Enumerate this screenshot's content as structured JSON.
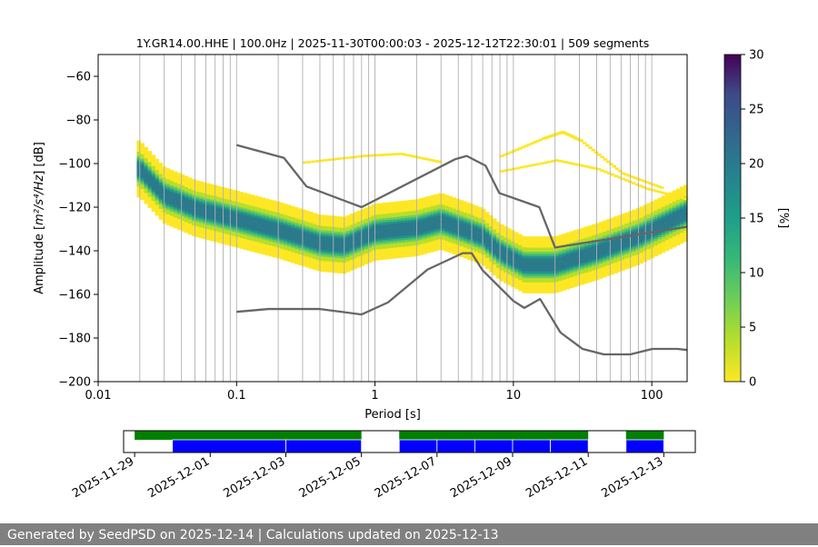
{
  "chart_data": {
    "type": "heatmap",
    "title": "1Y.GR14.00.HHE | 100.0Hz | 2025-11-30T00:00:03 - 2025-12-12T22:30:01 | 509 segments",
    "xlabel": "Period [s]",
    "ylabel_main": "Amplitude [",
    "ylabel_unit": "m²/s⁴/Hz",
    "ylabel_tail": "] [dB]",
    "x_scale": "log",
    "xlim": [
      0.01,
      180
    ],
    "x_ticks": [
      {
        "value": 0.01,
        "label": "0.01"
      },
      {
        "value": 0.1,
        "label": "0.1"
      },
      {
        "value": 1,
        "label": "1"
      },
      {
        "value": 10,
        "label": "10"
      },
      {
        "value": 100,
        "label": "100"
      }
    ],
    "ylim": [
      -200,
      -50
    ],
    "y_ticks": [
      -60,
      -80,
      -100,
      -120,
      -140,
      -160,
      -180,
      -200
    ],
    "grid": "vertical lines at log-spaced periods",
    "colorbar": {
      "label": "[%]",
      "min": 0,
      "max": 30,
      "ticks": [
        0,
        5,
        10,
        15,
        20,
        25,
        30
      ],
      "colormap": "viridis_r"
    },
    "median_ridge": [
      {
        "period": 0.02,
        "db": -103
      },
      {
        "period": 0.03,
        "db": -115
      },
      {
        "period": 0.05,
        "db": -121
      },
      {
        "period": 0.1,
        "db": -126
      },
      {
        "period": 0.2,
        "db": -131
      },
      {
        "period": 0.4,
        "db": -137
      },
      {
        "period": 0.6,
        "db": -138
      },
      {
        "period": 1,
        "db": -132
      },
      {
        "period": 2,
        "db": -130
      },
      {
        "period": 3,
        "db": -127
      },
      {
        "period": 4.5,
        "db": -131
      },
      {
        "period": 6,
        "db": -134
      },
      {
        "period": 8,
        "db": -141
      },
      {
        "period": 12,
        "db": -147
      },
      {
        "period": 20,
        "db": -147
      },
      {
        "period": 40,
        "db": -141
      },
      {
        "period": 80,
        "db": -134
      },
      {
        "period": 180,
        "db": -123
      }
    ],
    "high_noise_model": [
      {
        "period": 0.1,
        "db": -91.5
      },
      {
        "period": 0.22,
        "db": -97.4
      },
      {
        "period": 0.32,
        "db": -110.5
      },
      {
        "period": 0.8,
        "db": -120
      },
      {
        "period": 3.8,
        "db": -98
      },
      {
        "period": 4.6,
        "db": -96.5
      },
      {
        "period": 6.3,
        "db": -101
      },
      {
        "period": 7.9,
        "db": -113.5
      },
      {
        "period": 15.4,
        "db": -120
      },
      {
        "period": 20,
        "db": -138.5
      },
      {
        "period": 180,
        "db": -129
      }
    ],
    "low_noise_model": [
      {
        "period": 0.1,
        "db": -168
      },
      {
        "period": 0.17,
        "db": -166.7
      },
      {
        "period": 0.4,
        "db": -166.7
      },
      {
        "period": 0.8,
        "db": -169.2
      },
      {
        "period": 1.24,
        "db": -163.7
      },
      {
        "period": 2.4,
        "db": -148.6
      },
      {
        "period": 4.3,
        "db": -141.1
      },
      {
        "period": 5,
        "db": -141.1
      },
      {
        "period": 6,
        "db": -149
      },
      {
        "period": 10,
        "db": -163
      },
      {
        "period": 12,
        "db": -166.2
      },
      {
        "period": 15.6,
        "db": -162.1
      },
      {
        "period": 21.9,
        "db": -177.5
      },
      {
        "period": 31.6,
        "db": -185
      },
      {
        "period": 45,
        "db": -187.5
      },
      {
        "period": 70,
        "db": -187.5
      },
      {
        "period": 101,
        "db": -185
      },
      {
        "period": 154,
        "db": -185
      },
      {
        "period": 180,
        "db": -185.5
      }
    ],
    "timeline": {
      "x_labels": [
        "2025-11-29",
        "2025-12-01",
        "2025-12-03",
        "2025-12-05",
        "2025-12-07",
        "2025-12-09",
        "2025-12-11",
        "2025-12-13"
      ],
      "range_start": "2025-11-28T17:00",
      "range_end": "2025-12-13T20:00",
      "data_spans": [
        {
          "start": "2025-11-29T00:00",
          "end": "2025-12-05T00:00"
        },
        {
          "start": "2025-12-06T00:00",
          "end": "2025-12-11T00:00"
        },
        {
          "start": "2025-12-12T00:00",
          "end": "2025-12-13T00:00"
        }
      ],
      "psd_segments": [
        {
          "start": "2025-11-30T00:00",
          "end": "2025-12-03T00:00"
        },
        {
          "start": "2025-12-03T00:00",
          "end": "2025-12-05T00:00"
        },
        {
          "start": "2025-12-06T00:00",
          "end": "2025-12-07T00:00"
        },
        {
          "start": "2025-12-07T00:00",
          "end": "2025-12-08T00:00"
        },
        {
          "start": "2025-12-08T00:00",
          "end": "2025-12-09T00:00"
        },
        {
          "start": "2025-12-09T00:00",
          "end": "2025-12-10T00:00"
        },
        {
          "start": "2025-12-10T00:00",
          "end": "2025-12-11T00:00"
        },
        {
          "start": "2025-12-12T00:00",
          "end": "2025-12-13T00:00"
        }
      ],
      "colors": {
        "data": "#008000",
        "psd": "#0000ff"
      }
    },
    "colors": {
      "noise_model": "#666666",
      "grid": "#b0b0b0"
    }
  },
  "footer": {
    "text": "Generated by SeedPSD on 2025-12-14 | Calculations updated on 2025-12-13"
  }
}
